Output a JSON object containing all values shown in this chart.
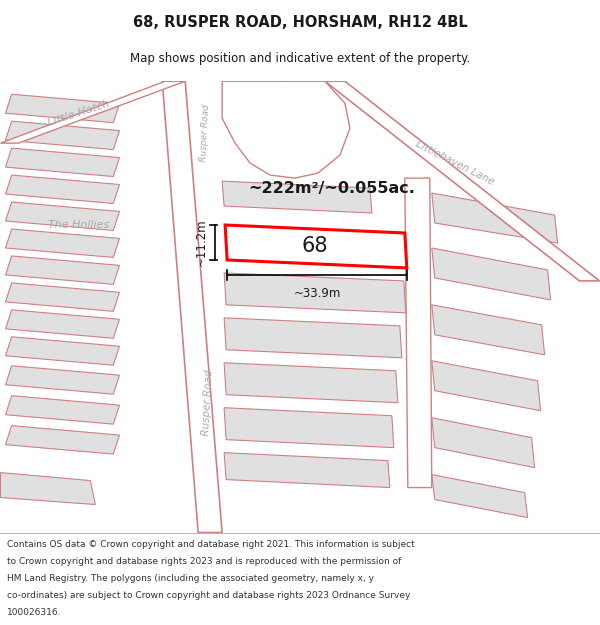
{
  "title": "68, RUSPER ROAD, HORSHAM, RH12 4BL",
  "subtitle": "Map shows position and indicative extent of the property.",
  "footer_lines": [
    "Contains OS data © Crown copyright and database right 2021. This information is subject",
    "to Crown copyright and database rights 2023 and is reproduced with the permission of",
    "HM Land Registry. The polygons (including the associated geometry, namely x, y",
    "co-ordinates) are subject to Crown copyright and database rights 2023 Ordnance Survey",
    "100026316."
  ],
  "area_label": "~222m²/~0.055ac.",
  "width_label": "~33.9m",
  "height_label": "~11.2m",
  "property_number": "68",
  "bg_color": "#f2f2f2",
  "road_fill": "#ffffff",
  "road_stroke": "#d08080",
  "bld_fill": "#e0e0e0",
  "bld_stroke": "#d08080",
  "hl_fill": "#ffffff",
  "hl_stroke": "#ff0000",
  "label_color": "#aaaaaa",
  "text_color": "#1a1a1a",
  "title_fontsize": 10.5,
  "subtitle_fontsize": 8.5,
  "footer_fontsize": 6.5
}
